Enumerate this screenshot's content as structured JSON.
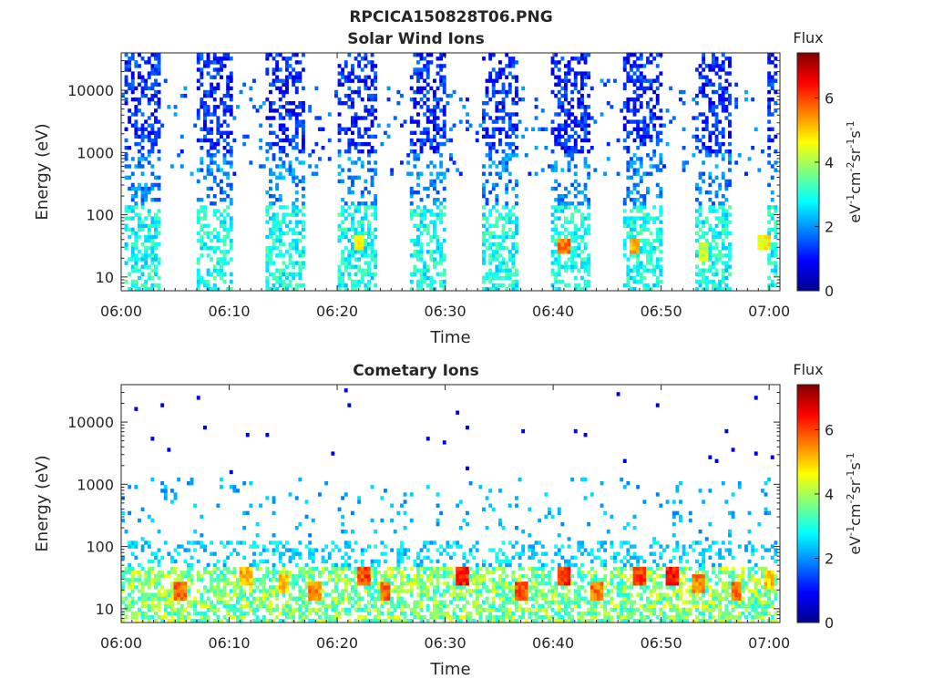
{
  "figure_title": "RPCICA150828T06.PNG",
  "chart_data": [
    {
      "type": "heatmap",
      "title": "Solar Wind Ions",
      "xlabel": "Time",
      "ylabel": "Energy (eV)",
      "x_ticks": [
        "06:00",
        "06:10",
        "06:20",
        "06:30",
        "06:40",
        "06:50",
        "07:00"
      ],
      "xlim": [
        "06:00",
        "07:01"
      ],
      "y_scale": "log",
      "ylim": [
        6,
        40000
      ],
      "y_ticks": [
        10,
        100,
        1000,
        10000
      ],
      "y_tick_labels": [
        "10",
        "100",
        "1000",
        "10000"
      ],
      "colorbar": {
        "title": "Flux",
        "label": "eV-1cm-2sr-1s-1",
        "range": [
          0,
          7.4
        ],
        "ticks": [
          "0",
          "2",
          "4",
          "6"
        ],
        "colormap": "jet"
      },
      "pattern": "periodic sweeps ~every 6.7 min: high-energy blue flux (1e3-3e4 eV, level ~0.5-1.5) with cyan/green low-energy flux (6-100 eV, level ~2.5-3.5); hot spots near 06:22, 06:41, 06:47, 06:54, 06:59 around 20-40 eV (level ~5-6)",
      "bursts_start_min": [
        0.2,
        6.9,
        13.5,
        20.1,
        26.7,
        33.3,
        39.9,
        46.5,
        53.1,
        59.7
      ],
      "burst_duration_min": 3.5,
      "hot_spots": [
        {
          "t_min": 22.0,
          "energy_eV": 35,
          "level": 5.2
        },
        {
          "t_min": 41.0,
          "energy_eV": 30,
          "level": 6.0
        },
        {
          "t_min": 47.5,
          "energy_eV": 30,
          "level": 5.6
        },
        {
          "t_min": 54.0,
          "energy_eV": 25,
          "level": 4.6
        },
        {
          "t_min": 59.5,
          "energy_eV": 35,
          "level": 5.0
        }
      ]
    },
    {
      "type": "heatmap",
      "title": "Cometary Ions",
      "xlabel": "Time",
      "ylabel": "Energy (eV)",
      "x_ticks": [
        "06:00",
        "06:10",
        "06:20",
        "06:30",
        "06:40",
        "06:50",
        "07:00"
      ],
      "xlim": [
        "06:00",
        "07:01"
      ],
      "y_scale": "log",
      "ylim": [
        6,
        40000
      ],
      "y_ticks": [
        10,
        100,
        1000,
        10000
      ],
      "y_tick_labels": [
        "10",
        "100",
        "1000",
        "10000"
      ],
      "colorbar": {
        "title": "Flux",
        "label": "eV-1cm-2sr-1s-1",
        "range": [
          0,
          7.4
        ],
        "ticks": [
          "0",
          "2",
          "4",
          "6"
        ],
        "colormap": "jet"
      },
      "pattern": "dense low-energy band (6-50 eV, level ~3.5-6.5) with red blobs every ~3.3 min; sparse cyan speckle 80-1000 eV; rare blue dots above 1000 eV",
      "blobs": [
        {
          "t_min": 5.5,
          "energy_eV": 20,
          "level": 6.2
        },
        {
          "t_min": 11.5,
          "energy_eV": 35,
          "level": 5.6
        },
        {
          "t_min": 15.0,
          "energy_eV": 25,
          "level": 5.5
        },
        {
          "t_min": 18.0,
          "energy_eV": 20,
          "level": 6.0
        },
        {
          "t_min": 22.5,
          "energy_eV": 35,
          "level": 6.4
        },
        {
          "t_min": 24.5,
          "energy_eV": 20,
          "level": 6.2
        },
        {
          "t_min": 31.5,
          "energy_eV": 35,
          "level": 6.8
        },
        {
          "t_min": 37.0,
          "energy_eV": 20,
          "level": 6.3
        },
        {
          "t_min": 41.0,
          "energy_eV": 35,
          "level": 6.6
        },
        {
          "t_min": 44.0,
          "energy_eV": 20,
          "level": 6.1
        },
        {
          "t_min": 48.0,
          "energy_eV": 35,
          "level": 6.5
        },
        {
          "t_min": 51.0,
          "energy_eV": 35,
          "level": 6.9
        },
        {
          "t_min": 53.5,
          "energy_eV": 25,
          "level": 6.0
        },
        {
          "t_min": 57.0,
          "energy_eV": 20,
          "level": 6.1
        },
        {
          "t_min": 60.0,
          "energy_eV": 30,
          "level": 5.4
        }
      ]
    }
  ]
}
